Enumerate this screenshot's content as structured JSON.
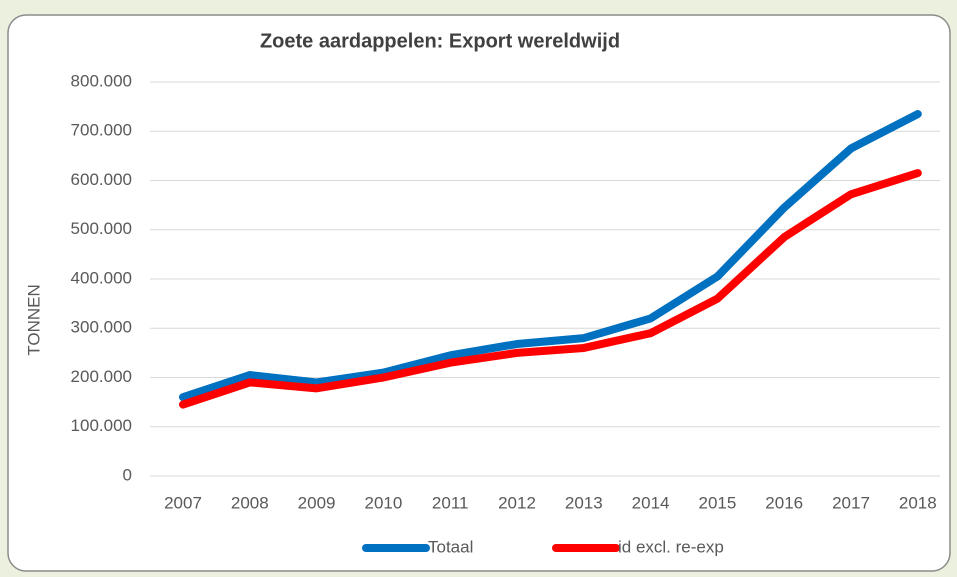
{
  "chart_data": {
    "type": "line",
    "title": "Zoete aardappelen: Export wereldwijd",
    "y_label": "TONNEN",
    "categories": [
      "2007",
      "2008",
      "2009",
      "2010",
      "2011",
      "2012",
      "2013",
      "2014",
      "2015",
      "2016",
      "2017",
      "2018"
    ],
    "series": [
      {
        "name": "Totaal",
        "color": "#0070c0",
        "values": [
          160000,
          205000,
          190000,
          210000,
          245000,
          268000,
          280000,
          320000,
          405000,
          545000,
          665000,
          735000
        ]
      },
      {
        "name": "id excl. re-exp",
        "color": "#ff0000",
        "values": [
          145000,
          190000,
          178000,
          200000,
          230000,
          250000,
          260000,
          290000,
          360000,
          485000,
          572000,
          615000
        ]
      }
    ],
    "ylim": [
      0,
      800000
    ],
    "yticks": [
      0,
      {
        "value": 100000,
        "label": "100.000"
      },
      {
        "value": 200000,
        "label": "200.000"
      },
      {
        "value": 300000,
        "label": "300.000"
      },
      {
        "value": 400000,
        "label": "400.000"
      },
      {
        "value": 500000,
        "label": "500.000"
      },
      {
        "value": 600000,
        "label": "600.000"
      },
      {
        "value": 700000,
        "label": "700.000"
      },
      {
        "value": 800000,
        "label": "800.000"
      }
    ],
    "grid": true,
    "legend": "bottom"
  }
}
